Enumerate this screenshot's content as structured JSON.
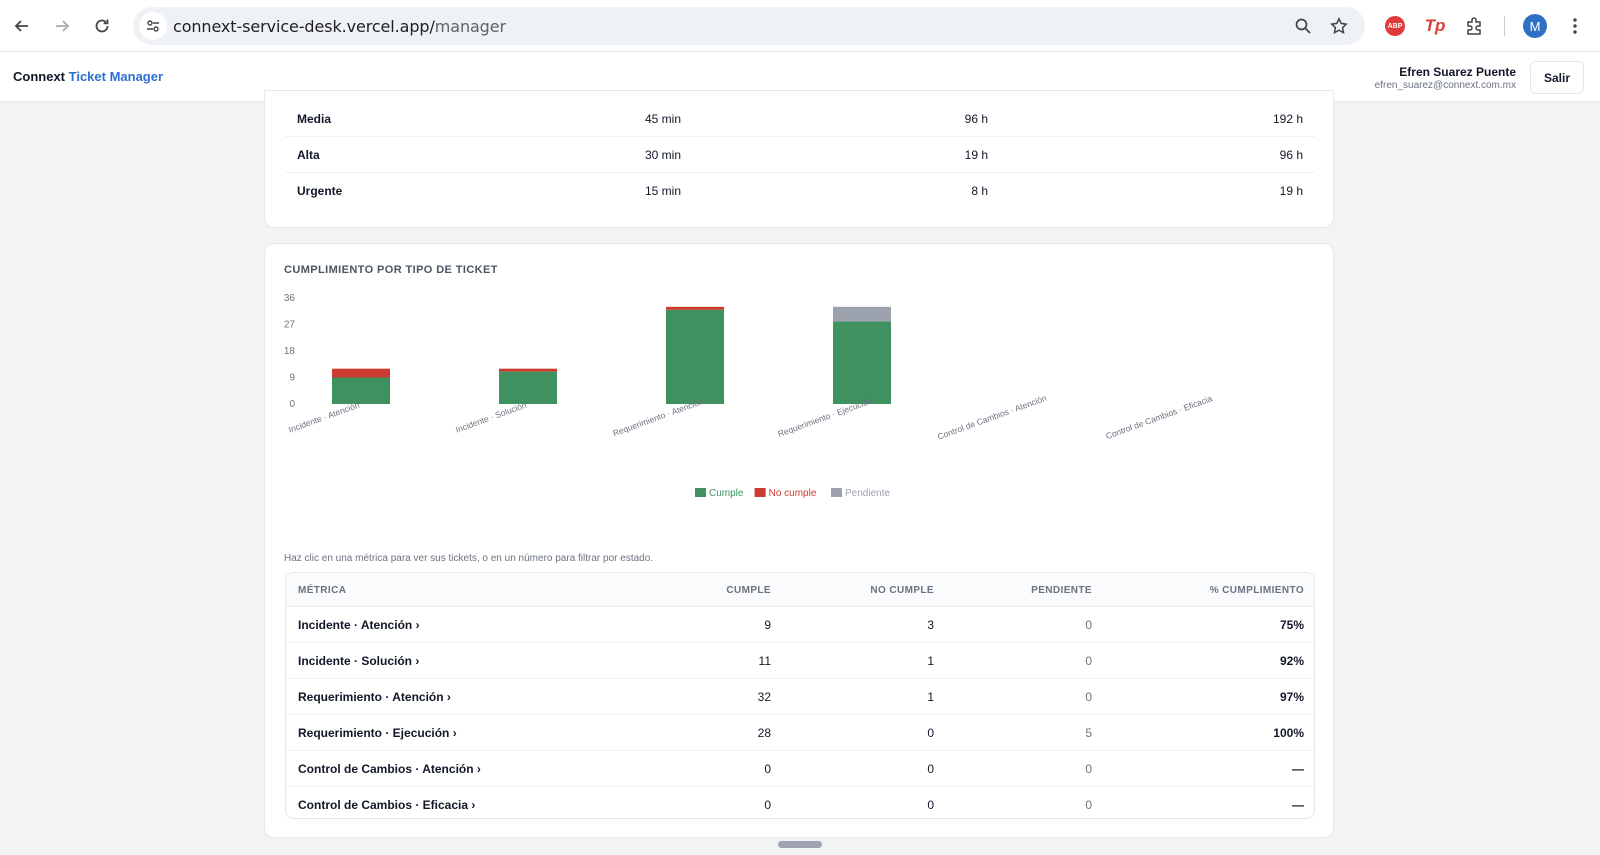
{
  "browser": {
    "url_host": "connext-service-desk.vercel.app/",
    "url_path": "manager",
    "profile_initial": "M",
    "ext_abp_label": "ABP",
    "ext_tp_label": "Tp"
  },
  "header": {
    "brand_primary": "Connext",
    "brand_accent": "Ticket Manager",
    "user_name": "Efren Suarez Puente",
    "user_email": "efren_suarez@connext.com.mx",
    "logout_label": "Salir"
  },
  "sla_table": {
    "rows": [
      {
        "priority": "Media",
        "c1": "45 min",
        "c2": "96 h",
        "c3": "192 h"
      },
      {
        "priority": "Alta",
        "c1": "30 min",
        "c2": "19 h",
        "c3": "96 h"
      },
      {
        "priority": "Urgente",
        "c1": "15 min",
        "c2": "8 h",
        "c3": "19 h"
      }
    ]
  },
  "compliance": {
    "title": "CUMPLIMIENTO POR TIPO DE TICKET",
    "hint": "Haz clic en una métrica para ver sus tickets, o en un número para filtrar por estado.",
    "columns": {
      "metric": "MÉTRICA",
      "cumple": "CUMPLE",
      "no_cumple": "NO CUMPLE",
      "pendiente": "PENDIENTE",
      "pct": "% CUMPLIMIENTO"
    },
    "rows": [
      {
        "metric": "Incidente · Atención ›",
        "cumple": "9",
        "no_cumple": "3",
        "pendiente": "0",
        "pct": "75%"
      },
      {
        "metric": "Incidente · Solución ›",
        "cumple": "11",
        "no_cumple": "1",
        "pendiente": "0",
        "pct": "92%"
      },
      {
        "metric": "Requerimiento · Atención ›",
        "cumple": "32",
        "no_cumple": "1",
        "pendiente": "0",
        "pct": "97%"
      },
      {
        "metric": "Requerimiento · Ejecución ›",
        "cumple": "28",
        "no_cumple": "0",
        "pendiente": "5",
        "pct": "100%"
      },
      {
        "metric": "Control de Cambios · Atención ›",
        "cumple": "0",
        "no_cumple": "0",
        "pendiente": "0",
        "pct": "—"
      },
      {
        "metric": "Control de Cambios · Eficacia ›",
        "cumple": "0",
        "no_cumple": "0",
        "pendiente": "0",
        "pct": "—"
      }
    ]
  },
  "chart_data": {
    "type": "bar",
    "stacked": true,
    "title": "CUMPLIMIENTO POR TIPO DE TICKET",
    "categories": [
      "Incidente · Atención",
      "Incidente · Solución",
      "Requerimiento · Atención",
      "Requerimiento · Ejecución",
      "Control de Cambios · Atención",
      "Control de Cambios · Eficacia"
    ],
    "series": [
      {
        "name": "Cumple",
        "color": "#3f9160",
        "values": [
          9,
          11,
          32,
          28,
          0,
          0
        ]
      },
      {
        "name": "No cumple",
        "color": "#cc3b2f",
        "values": [
          3,
          1,
          1,
          0,
          0,
          0
        ]
      },
      {
        "name": "Pendiente",
        "color": "#9ca3af",
        "values": [
          0,
          0,
          0,
          5,
          0,
          0
        ]
      }
    ],
    "yticks": [
      0,
      9,
      18,
      27,
      36
    ],
    "ylim": [
      0,
      36
    ],
    "legend": "bottom-center",
    "grid": false
  }
}
